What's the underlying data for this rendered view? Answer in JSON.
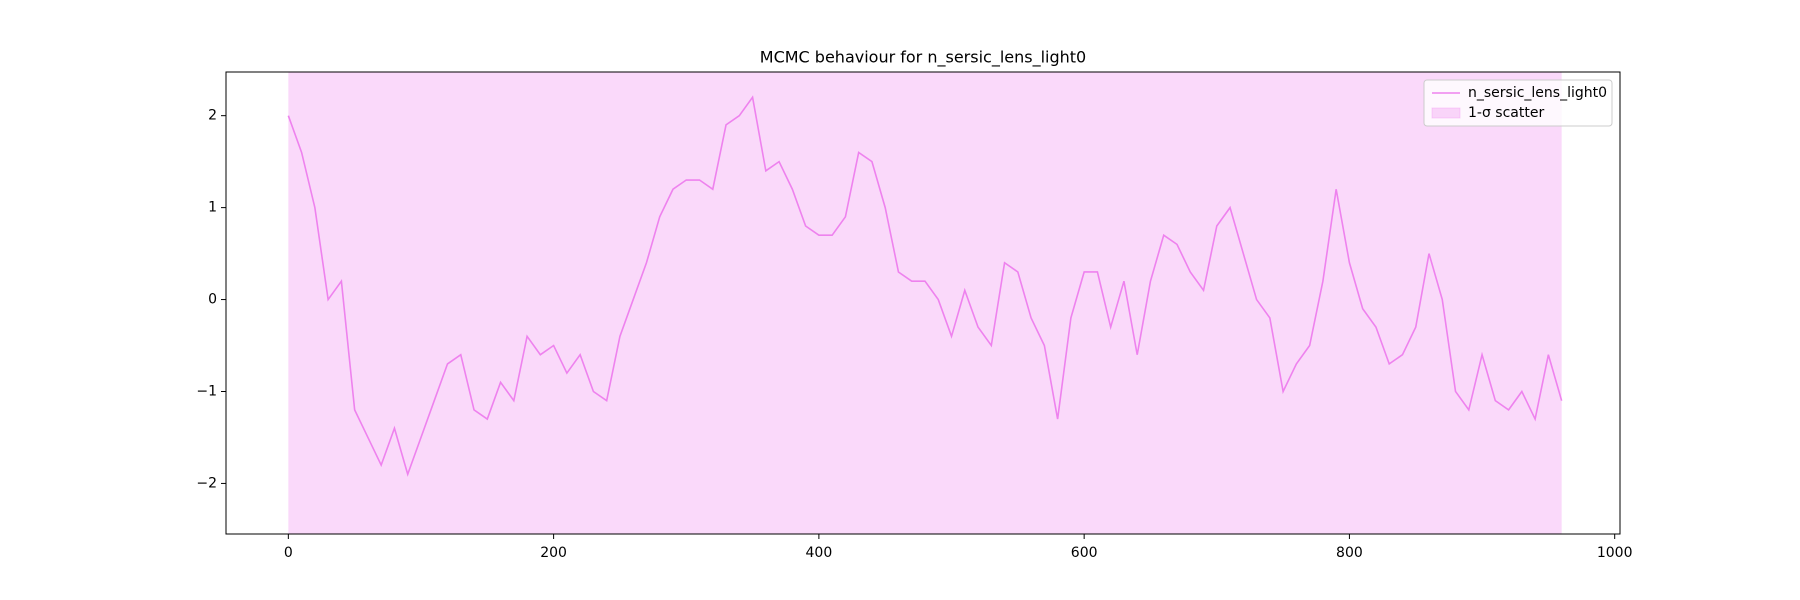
{
  "chart_data": {
    "type": "line",
    "title": "MCMC behaviour for n_sersic_lens_light0",
    "x": [
      0,
      10,
      20,
      30,
      40,
      50,
      60,
      70,
      80,
      90,
      100,
      110,
      120,
      130,
      140,
      150,
      160,
      170,
      180,
      190,
      200,
      210,
      220,
      230,
      240,
      250,
      260,
      270,
      280,
      290,
      300,
      310,
      320,
      330,
      340,
      350,
      360,
      370,
      380,
      390,
      400,
      410,
      420,
      430,
      440,
      450,
      460,
      470,
      480,
      490,
      500,
      510,
      520,
      530,
      540,
      550,
      560,
      570,
      580,
      590,
      600,
      610,
      620,
      630,
      640,
      650,
      660,
      670,
      680,
      690,
      700,
      710,
      720,
      730,
      740,
      750,
      760,
      770,
      780,
      790,
      800,
      810,
      820,
      830,
      840,
      850,
      860,
      870,
      880,
      890,
      900,
      910,
      920,
      930,
      940,
      950,
      960
    ],
    "series": [
      {
        "name": "n_sersic_lens_light0",
        "color": "#ee82ee",
        "values": [
          2.0,
          1.6,
          1.0,
          0.0,
          0.2,
          -1.2,
          -1.5,
          -1.8,
          -1.4,
          -1.9,
          -1.5,
          -1.1,
          -0.7,
          -0.6,
          -1.2,
          -1.3,
          -0.9,
          -1.1,
          -0.4,
          -0.6,
          -0.5,
          -0.8,
          -0.6,
          -1.0,
          -1.1,
          -0.4,
          0.0,
          0.4,
          0.9,
          1.2,
          1.3,
          1.3,
          1.2,
          1.9,
          2.0,
          2.2,
          1.4,
          1.5,
          1.2,
          0.8,
          0.7,
          0.7,
          0.9,
          1.6,
          1.5,
          1.0,
          0.3,
          0.2,
          0.2,
          0.0,
          -0.4,
          0.1,
          -0.3,
          -0.5,
          0.4,
          0.3,
          -0.2,
          -0.5,
          -1.3,
          -0.2,
          0.3,
          0.3,
          -0.3,
          0.2,
          -0.6,
          0.2,
          0.7,
          0.6,
          0.3,
          0.1,
          0.8,
          1.0,
          0.5,
          0.0,
          -0.2,
          -1.0,
          -0.7,
          -0.5,
          0.2,
          1.2,
          0.4,
          -0.1,
          -0.3,
          -0.7,
          -0.6,
          -0.3,
          0.5,
          0.0,
          -1.0,
          -1.2,
          -0.6,
          -1.1,
          -1.2,
          -1.0,
          -1.3,
          -0.6,
          -1.1
        ]
      }
    ],
    "band": {
      "name": "1-σ scatter",
      "color": "#ee82ee",
      "x": [
        0,
        960
      ],
      "lower": [
        -2.55,
        -2.55
      ],
      "upper": [
        2.475,
        2.475
      ]
    },
    "xlim": [
      -47,
      1004
    ],
    "ylim": [
      -2.55,
      2.475
    ],
    "xticks": [
      0,
      200,
      400,
      600,
      800,
      1000
    ],
    "yticks": [
      {
        "value": -2,
        "label": "−2"
      },
      {
        "value": -1,
        "label": "−1"
      },
      0,
      1,
      2
    ],
    "legend": "upper right"
  }
}
